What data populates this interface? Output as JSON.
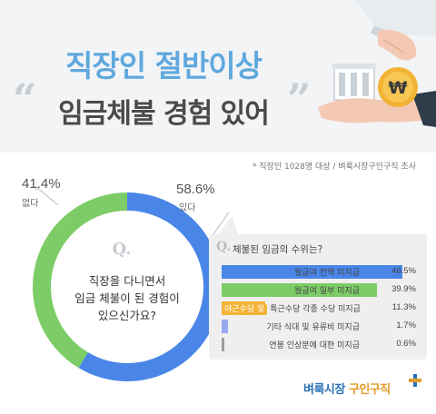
{
  "header": {
    "title_line1": "직장인 절반이상",
    "title_line2": "임금체불 경험 있어",
    "quote_open": "“",
    "quote_close": "”"
  },
  "source_note": "* 직장인 1028명 대상 / 벼룩시장구인구직 조사",
  "question": {
    "q_mark": "Q.",
    "text_line1": "직장을 다니면서",
    "text_line2": "임금 체불이 된 경험이",
    "text_line3": "있으신가요?"
  },
  "colors": {
    "yes": "#4a86e8",
    "no": "#7ccc67",
    "accent_title": "#5fa8dd",
    "tag": "#f5b335"
  },
  "logo": {
    "part1": "벼룩시장",
    "part2": "구인구직"
  },
  "chart_data": [
    {
      "type": "pie",
      "variant": "donut",
      "categories": [
        "있다",
        "없다"
      ],
      "values": [
        58.6,
        41.4
      ],
      "value_labels": [
        "58.6%",
        "41.4%"
      ],
      "colors": [
        "#4a86e8",
        "#7ccc67"
      ]
    },
    {
      "type": "bar",
      "orientation": "horizontal",
      "title_q": "Q.",
      "title": "체불된 임금의 수위는?",
      "categories": [
        {
          "tag": "",
          "label": "월급여 전액 미지급"
        },
        {
          "tag": "",
          "label": "월급여 일부 미지급"
        },
        {
          "tag": "야근수당 및",
          "label": "특근수당 각종 수당 미지급"
        },
        {
          "tag": "",
          "label": "기타 식대 및 유류비 미지급"
        },
        {
          "tag": "",
          "label": "연봉 인상분에 대한 미지급"
        }
      ],
      "values": [
        46.5,
        39.9,
        11.3,
        1.7,
        0.6
      ],
      "value_labels": [
        "46.5%",
        "39.9%",
        "11.3%",
        "1.7%",
        "0.6%"
      ],
      "colors": [
        "#4a86e8",
        "#7ccc67",
        "#f5b335",
        "#9aa8f0",
        "#9c9c9c"
      ],
      "xlim": [
        0,
        50
      ]
    }
  ]
}
